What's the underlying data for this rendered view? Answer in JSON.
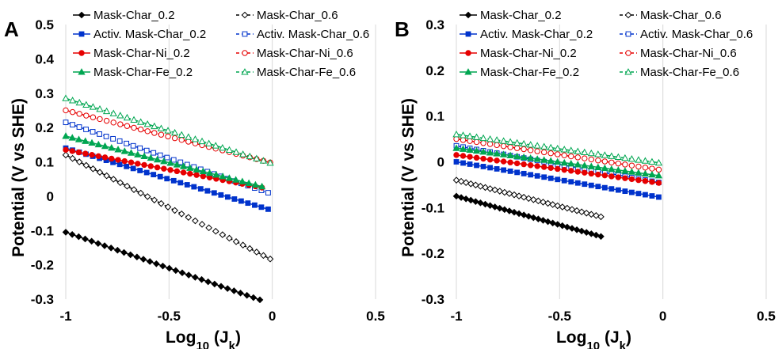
{
  "chart_data": [
    {
      "type": "scatter",
      "panel_label": "A",
      "xlabel": "Log10 (Jk)",
      "ylabel": "Potential (V vs SHE)",
      "xlim": [
        -1,
        0.5
      ],
      "ylim": [
        -0.3,
        0.5
      ],
      "x_ticks": [
        "-1",
        "-0.5",
        "0",
        "0.5"
      ],
      "y_ticks": [
        "-0.3",
        "-0.2",
        "-0.1",
        "0",
        "0.1",
        "0.2",
        "0.3",
        "0.4",
        "0.5"
      ],
      "grid": "vertical",
      "legend_position": "top",
      "series": [
        {
          "name": "Mask-Char_0.2",
          "color": "#000000",
          "marker": "diamond-filled",
          "dash": "solid",
          "x": [
            -1.0,
            -0.06
          ],
          "y": [
            -0.105,
            -0.302
          ]
        },
        {
          "name": "Mask-Char_0.6",
          "color": "#000000",
          "marker": "diamond-open",
          "dash": "dash",
          "x": [
            -1.0,
            -0.01
          ],
          "y": [
            0.12,
            -0.183
          ]
        },
        {
          "name": "Activ. Mask-Char_0.2",
          "color": "#0033cc",
          "marker": "square-filled",
          "dash": "solid",
          "x": [
            -1.0,
            -0.02
          ],
          "y": [
            0.14,
            -0.038
          ]
        },
        {
          "name": "Activ. Mask-Char_0.6",
          "color": "#0033cc",
          "marker": "square-open",
          "dash": "dash",
          "x": [
            -1.0,
            -0.02
          ],
          "y": [
            0.215,
            0.01
          ]
        },
        {
          "name": "Mask-Char-Ni_0.2",
          "color": "#e60000",
          "marker": "circle-filled",
          "dash": "solid",
          "x": [
            -1.0,
            -0.05
          ],
          "y": [
            0.135,
            0.025
          ]
        },
        {
          "name": "Mask-Char-Ni_0.6",
          "color": "#e60000",
          "marker": "circle-open",
          "dash": "dash",
          "x": [
            -1.0,
            -0.01
          ],
          "y": [
            0.25,
            0.098
          ]
        },
        {
          "name": "Mask-Char-Fe_0.2",
          "color": "#00a651",
          "marker": "triangle-filled",
          "dash": "solid",
          "x": [
            -1.0,
            -0.05
          ],
          "y": [
            0.175,
            0.028
          ]
        },
        {
          "name": "Mask-Char-Fe_0.6",
          "color": "#00a651",
          "marker": "triangle-open",
          "dash": "dash",
          "x": [
            -1.0,
            -0.01
          ],
          "y": [
            0.285,
            0.097
          ]
        }
      ]
    },
    {
      "type": "scatter",
      "panel_label": "B",
      "xlabel": "Log10 (Jk)",
      "ylabel": "Potential (V vs SHE)",
      "xlim": [
        -1,
        0.5
      ],
      "ylim": [
        -0.3,
        0.3
      ],
      "x_ticks": [
        "-1",
        "-0.5",
        "0",
        "0.5"
      ],
      "y_ticks": [
        "-0.3",
        "-0.2",
        "-0.1",
        "0",
        "0.1",
        "0.2",
        "0.3"
      ],
      "grid": "vertical",
      "legend_position": "top",
      "series": [
        {
          "name": "Mask-Char_0.2",
          "color": "#000000",
          "marker": "diamond-filled",
          "dash": "solid",
          "x": [
            -1.0,
            -0.3
          ],
          "y": [
            -0.075,
            -0.163
          ]
        },
        {
          "name": "Mask-Char_0.6",
          "color": "#000000",
          "marker": "diamond-open",
          "dash": "dash",
          "x": [
            -1.0,
            -0.3
          ],
          "y": [
            -0.04,
            -0.12
          ]
        },
        {
          "name": "Activ. Mask-Char_0.2",
          "color": "#0033cc",
          "marker": "square-filled",
          "dash": "solid",
          "x": [
            -1.0,
            -0.02
          ],
          "y": [
            0.0,
            -0.077
          ]
        },
        {
          "name": "Activ. Mask-Char_0.6",
          "color": "#0033cc",
          "marker": "square-open",
          "dash": "dash",
          "x": [
            -1.0,
            -0.02
          ],
          "y": [
            0.035,
            -0.045
          ]
        },
        {
          "name": "Mask-Char-Ni_0.2",
          "color": "#e60000",
          "marker": "circle-filled",
          "dash": "solid",
          "x": [
            -1.0,
            -0.02
          ],
          "y": [
            0.015,
            -0.046
          ]
        },
        {
          "name": "Mask-Char-Ni_0.6",
          "color": "#e60000",
          "marker": "circle-open",
          "dash": "dash",
          "x": [
            -1.0,
            -0.02
          ],
          "y": [
            0.05,
            -0.017
          ]
        },
        {
          "name": "Mask-Char-Fe_0.2",
          "color": "#00a651",
          "marker": "triangle-filled",
          "dash": "solid",
          "x": [
            -1.0,
            -0.02
          ],
          "y": [
            0.03,
            -0.03
          ]
        },
        {
          "name": "Mask-Char-Fe_0.6",
          "color": "#00a651",
          "marker": "triangle-open",
          "dash": "dash",
          "x": [
            -1.0,
            -0.02
          ],
          "y": [
            0.06,
            -0.002
          ]
        }
      ]
    }
  ]
}
